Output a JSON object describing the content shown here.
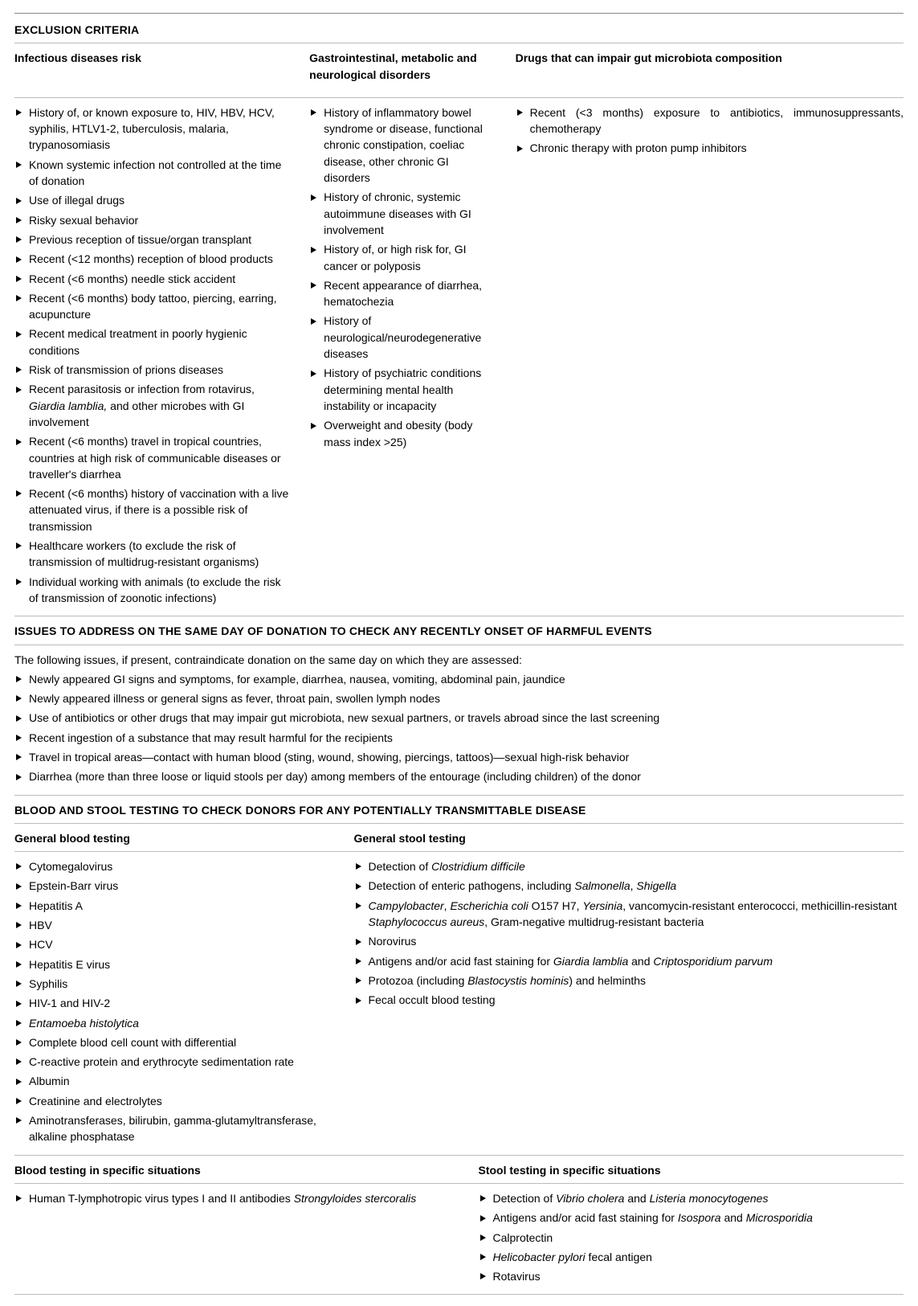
{
  "exclusion": {
    "title": "EXCLUSION CRITERIA",
    "col1": {
      "header": "Infectious diseases risk",
      "items": [
        "History of, or known exposure to, HIV, HBV, HCV, syphilis, HTLV1-2, tuberculosis, malaria, trypanosomiasis",
        "Known systemic infection not controlled at the time of donation",
        "Use of illegal drugs",
        "Risky sexual behavior",
        "Previous reception of tissue/organ transplant",
        "Recent (<12 months) reception of blood products",
        "Recent (<6 months) needle stick accident",
        "Recent (<6 months) body tattoo, piercing, earring, acupuncture",
        "Recent medical treatment in poorly hygienic conditions",
        "Risk of transmission of prions diseases",
        "Recent parasitosis or infection from rotavirus, <span class=\"em\">Giardia lamblia,</span> and other microbes with GI involvement",
        "Recent (<6 months) travel in tropical countries, countries at high risk of communicable diseases or traveller's diarrhea",
        "Recent (<6 months) history of vaccination with a live attenuated virus, if there is a possible risk of transmission",
        "Healthcare workers (to exclude the risk of transmission of multidrug-resistant organisms)",
        "Individual working with animals (to exclude the risk of transmission of zoonotic infections)"
      ]
    },
    "col2": {
      "header": "Gastrointestinal, metabolic and neurological disorders",
      "items": [
        "History of inflammatory bowel syndrome or disease, functional chronic constipation, coeliac disease, other chronic GI disorders",
        "History of chronic, systemic autoimmune diseases with GI involvement",
        "History of, or high risk for, GI cancer or polyposis",
        "Recent appearance of diarrhea, hematochezia",
        "History of neurological/neurodegenerative diseases",
        "History of psychiatric conditions determining mental health instability or incapacity",
        "Overweight and obesity (body mass index >25)"
      ]
    },
    "col3": {
      "header": "Drugs that can impair gut microbiota composition",
      "items": [
        "Recent (<3 months) exposure to antibiotics, immunosuppressants, chemotherapy",
        "Chronic therapy with proton pump inhibitors"
      ]
    }
  },
  "issues": {
    "title": "ISSUES TO ADDRESS ON THE SAME DAY OF DONATION TO CHECK ANY RECENTLY ONSET OF HARMFUL EVENTS",
    "intro": "The following issues, if present, contraindicate donation on the same day on which they are assessed:",
    "items": [
      "Newly appeared GI signs and symptoms, for example, diarrhea, nausea, vomiting, abdominal pain, jaundice",
      "Newly appeared illness or general signs as fever, throat pain, swollen lymph nodes",
      "Use of antibiotics or other drugs that may impair gut microbiota, new sexual partners, or travels abroad since the last screening",
      "Recent ingestion of a substance that may result harmful for the recipients",
      "Travel in tropical areas—contact with human blood (sting, wound, showing, piercings, tattoos)—sexual high-risk behavior",
      "Diarrhea (more than three loose or liquid stools per day) among members of the entourage (including children) of the donor"
    ]
  },
  "testing": {
    "title": "BLOOD AND STOOL TESTING TO CHECK DONORS FOR ANY POTENTIALLY TRANSMITTABLE DISEASE",
    "blood_general": {
      "header": "General blood testing",
      "items": [
        "Cytomegalovirus",
        "Epstein-Barr virus",
        "Hepatitis A",
        "HBV",
        "HCV",
        "Hepatitis E virus",
        "Syphilis",
        "HIV-1 and HIV-2",
        "<span class=\"em\">Entamoeba histolytica</span>",
        "Complete blood cell count with differential",
        "C-reactive protein and erythrocyte sedimentation rate",
        "Albumin",
        "Creatinine and electrolytes",
        "Aminotransferases, bilirubin, gamma-glutamyltransferase, alkaline phosphatase"
      ]
    },
    "stool_general": {
      "header": "General stool testing",
      "items": [
        "Detection of <span class=\"em\">Clostridium difficile</span>",
        "Detection of enteric pathogens, including <span class=\"em\">Salmonella</span>, <span class=\"em\">Shigella</span>",
        "<span class=\"em\">Campylobacter</span>, <span class=\"em\">Escherichia coli</span> O157 H7, <span class=\"em\">Yersinia</span>, vancomycin-resistant enterococci, methicillin-resistant <span class=\"em\">Staphylococcus aureus</span>, Gram-negative multidrug-resistant bacteria",
        "Norovirus",
        "Antigens and/or acid fast staining for <span class=\"em\">Giardia lamblia</span> and <span class=\"em\">Criptosporidium parvum</span>",
        "Protozoa (including <span class=\"em\">Blastocystis hominis</span>) and helminths",
        "Fecal occult blood testing"
      ]
    },
    "blood_specific": {
      "header": "Blood testing in specific situations",
      "items": [
        "Human T-lymphotropic virus types I and II antibodies <span class=\"em\">Strongyloides stercoralis</span>"
      ]
    },
    "stool_specific": {
      "header": "Stool testing in specific situations",
      "items": [
        "Detection of <span class=\"em\">Vibrio cholera</span> and <span class=\"em\">Listeria monocytogenes</span>",
        "Antigens and/or acid fast staining for <span class=\"em\">Isospora</span> and <span class=\"em\">Microsporidia</span>",
        "Calprotectin",
        "<span class=\"em\">Helicobacter pylori</span> fecal antigen",
        "Rotavirus"
      ]
    }
  }
}
